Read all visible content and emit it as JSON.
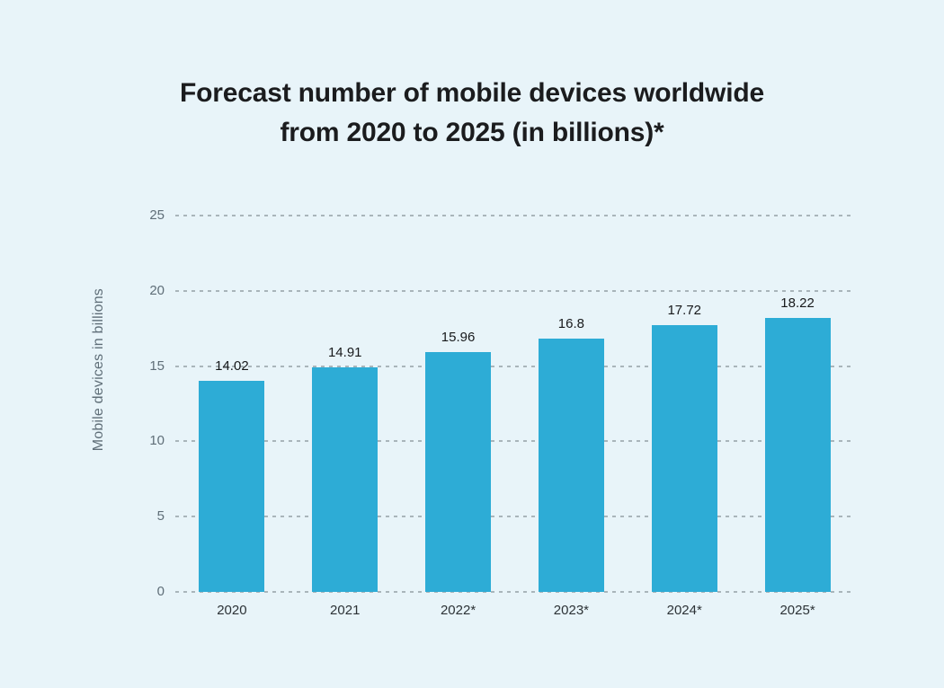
{
  "page": {
    "background_color": "#e8f4f9",
    "title_line1": "Forecast number of mobile devices worldwide",
    "title_line2": "from 2020 to 2025 (in billions)*"
  },
  "chart_data": {
    "type": "bar",
    "title": "Forecast number of mobile devices worldwide from 2020 to 2025 (in billions)*",
    "categories": [
      "2020",
      "2021",
      "2022*",
      "2023*",
      "2024*",
      "2025*"
    ],
    "values": [
      14.02,
      14.91,
      15.96,
      16.8,
      17.72,
      18.22
    ],
    "value_labels": [
      "14.02",
      "14.91",
      "15.96",
      "16.8",
      "17.72",
      "18.22"
    ],
    "xlabel": "",
    "ylabel": "Mobile devices in billions",
    "ylim": [
      0,
      25
    ],
    "yticks": [
      0,
      5,
      10,
      15,
      20,
      25
    ],
    "grid": "horizontal-dashed",
    "legend": "none",
    "bar_color": "#2dacd6",
    "background_color": "#e8f4f9",
    "grid_color": "#99a5ab",
    "tick_color": "#5f6e78",
    "value_label_color": "#17191b",
    "title_color": "#1b1c1e"
  }
}
